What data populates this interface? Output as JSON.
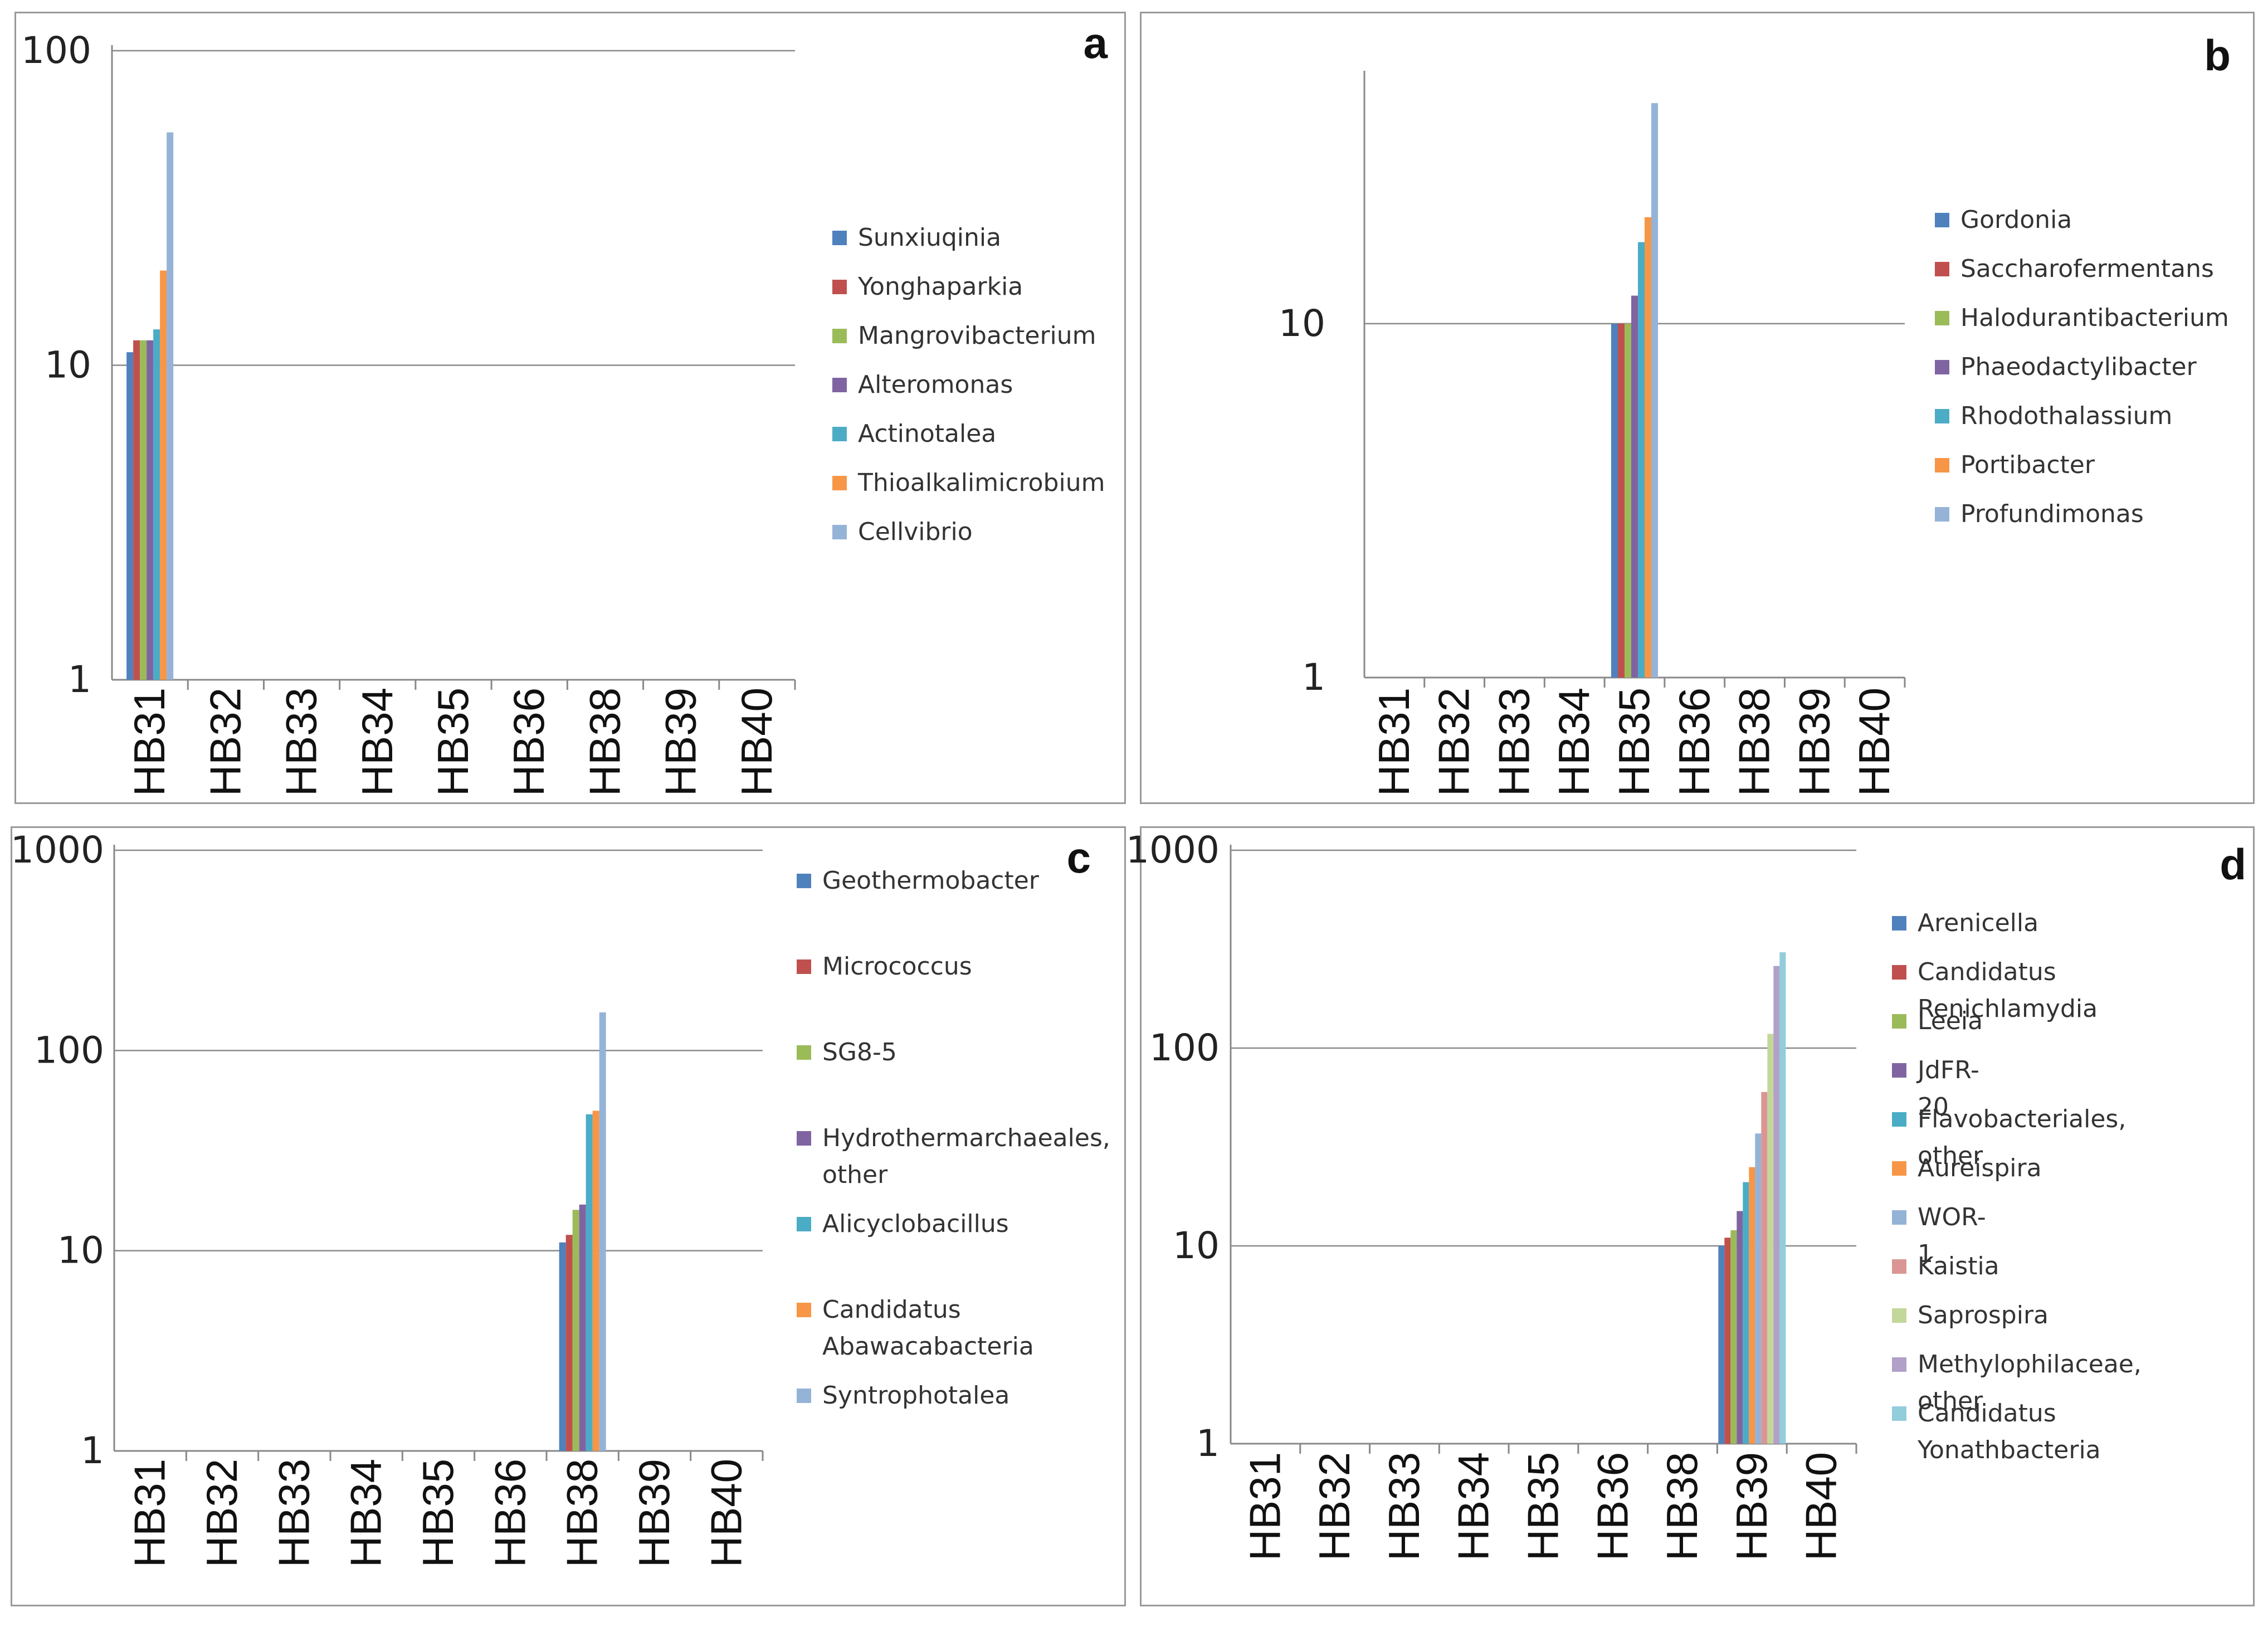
{
  "chart_data": [
    {
      "panel": "a",
      "type": "bar",
      "scale": "log",
      "ylim": [
        1,
        100
      ],
      "y_ticks": [
        "1",
        "10",
        "100"
      ],
      "categories": [
        "HB31",
        "HB32",
        "HB33",
        "HB34",
        "HB35",
        "HB36",
        "HB38",
        "HB39",
        "HB40"
      ],
      "series": [
        {
          "name": "Sunxiuqinia",
          "color": "#4f81bd",
          "values": [
            11,
            1,
            1,
            1,
            1,
            1,
            1,
            1,
            1
          ]
        },
        {
          "name": "Yonghaparkia",
          "color": "#c0504d",
          "values": [
            12,
            1,
            1,
            1,
            1,
            1,
            1,
            1,
            1
          ]
        },
        {
          "name": "Mangrovibacterium",
          "color": "#9bbb59",
          "values": [
            12,
            1,
            1,
            1,
            1,
            1,
            1,
            1,
            1
          ]
        },
        {
          "name": "Alteromonas",
          "color": "#8064a2",
          "values": [
            12,
            1,
            1,
            1,
            1,
            1,
            1,
            1,
            1
          ]
        },
        {
          "name": "Actinotalea",
          "color": "#4bacc6",
          "values": [
            13,
            1,
            1,
            1,
            1,
            1,
            1,
            1,
            1
          ]
        },
        {
          "name": "Thioalkalimicrobium",
          "color": "#f79646",
          "values": [
            20,
            1,
            1,
            1,
            1,
            1,
            1,
            1,
            1
          ]
        },
        {
          "name": "Cellvibrio",
          "color": "#95b3d7",
          "values": [
            55,
            1,
            1,
            1,
            1,
            1,
            1,
            1,
            1
          ]
        }
      ]
    },
    {
      "panel": "b",
      "type": "bar",
      "scale": "log",
      "ylim": [
        1,
        50
      ],
      "y_ticks": [
        "1",
        "10"
      ],
      "categories": [
        "HB31",
        "HB32",
        "HB33",
        "HB34",
        "HB35",
        "HB36",
        "HB38",
        "HB39",
        "HB40"
      ],
      "series": [
        {
          "name": "Gordonia",
          "color": "#4f81bd",
          "values": [
            1,
            1,
            1,
            1,
            10,
            1,
            1,
            1,
            1
          ]
        },
        {
          "name": "Saccharofermentans",
          "color": "#c0504d",
          "values": [
            1,
            1,
            1,
            1,
            10,
            1,
            1,
            1,
            1
          ]
        },
        {
          "name": "Halodurantibacterium",
          "color": "#9bbb59",
          "values": [
            1,
            1,
            1,
            1,
            10,
            1,
            1,
            1,
            1
          ]
        },
        {
          "name": "Phaeodactylibacter",
          "color": "#8064a2",
          "values": [
            1,
            1,
            1,
            1,
            12,
            1,
            1,
            1,
            1
          ]
        },
        {
          "name": "Rhodothalassium",
          "color": "#4bacc6",
          "values": [
            1,
            1,
            1,
            1,
            17,
            1,
            1,
            1,
            1
          ]
        },
        {
          "name": "Portibacter",
          "color": "#f79646",
          "values": [
            1,
            1,
            1,
            1,
            20,
            1,
            1,
            1,
            1
          ]
        },
        {
          "name": "Profundimonas",
          "color": "#95b3d7",
          "values": [
            1,
            1,
            1,
            1,
            42,
            1,
            1,
            1,
            1
          ]
        }
      ]
    },
    {
      "panel": "c",
      "type": "bar",
      "scale": "log",
      "ylim": [
        1,
        1000
      ],
      "y_ticks": [
        "1",
        "10",
        "100",
        "1000"
      ],
      "categories": [
        "HB31",
        "HB32",
        "HB33",
        "HB34",
        "HB35",
        "HB36",
        "HB38",
        "HB39",
        "HB40"
      ],
      "series": [
        {
          "name": "Geothermobacter",
          "color": "#4f81bd",
          "values": [
            1,
            1,
            1,
            1,
            1,
            1,
            11,
            1,
            1
          ]
        },
        {
          "name": "Micrococcus",
          "color": "#c0504d",
          "values": [
            1,
            1,
            1,
            1,
            1,
            1,
            12,
            1,
            1
          ]
        },
        {
          "name": "SG8-5",
          "color": "#9bbb59",
          "values": [
            1,
            1,
            1,
            1,
            1,
            1,
            16,
            1,
            1
          ]
        },
        {
          "name": "Hydrothermarchaeales, other",
          "color": "#8064a2",
          "values": [
            1,
            1,
            1,
            1,
            1,
            1,
            17,
            1,
            1
          ]
        },
        {
          "name": "Alicyclobacillus",
          "color": "#4bacc6",
          "values": [
            1,
            1,
            1,
            1,
            1,
            1,
            48,
            1,
            1
          ]
        },
        {
          "name": "Candidatus Abawacabacteria",
          "color": "#f79646",
          "values": [
            1,
            1,
            1,
            1,
            1,
            1,
            50,
            1,
            1
          ]
        },
        {
          "name": "Syntrophotalea",
          "color": "#95b3d7",
          "values": [
            1,
            1,
            1,
            1,
            1,
            1,
            155,
            1,
            1
          ]
        }
      ]
    },
    {
      "panel": "d",
      "type": "bar",
      "scale": "log",
      "ylim": [
        1,
        1000
      ],
      "y_ticks": [
        "1",
        "10",
        "100",
        "1000"
      ],
      "categories": [
        "HB31",
        "HB32",
        "HB33",
        "HB34",
        "HB35",
        "HB36",
        "HB38",
        "HB39",
        "HB40"
      ],
      "series": [
        {
          "name": "Arenicella",
          "color": "#4f81bd",
          "values": [
            1,
            1,
            1,
            1,
            1,
            1,
            1,
            10,
            1
          ]
        },
        {
          "name": "Candidatus Renichlamydia",
          "color": "#c0504d",
          "values": [
            1,
            1,
            1,
            1,
            1,
            1,
            1,
            11,
            1
          ]
        },
        {
          "name": "Leeia",
          "color": "#9bbb59",
          "values": [
            1,
            1,
            1,
            1,
            1,
            1,
            1,
            12,
            1
          ]
        },
        {
          "name": "JdFR-20",
          "color": "#8064a2",
          "values": [
            1,
            1,
            1,
            1,
            1,
            1,
            1,
            15,
            1
          ]
        },
        {
          "name": "Flavobacteriales, other",
          "color": "#4bacc6",
          "values": [
            1,
            1,
            1,
            1,
            1,
            1,
            1,
            21,
            1
          ]
        },
        {
          "name": "Aureispira",
          "color": "#f79646",
          "values": [
            1,
            1,
            1,
            1,
            1,
            1,
            1,
            25,
            1
          ]
        },
        {
          "name": "WOR-1",
          "color": "#95b3d7",
          "values": [
            1,
            1,
            1,
            1,
            1,
            1,
            1,
            37,
            1
          ]
        },
        {
          "name": "Kaistia",
          "color": "#da9694",
          "values": [
            1,
            1,
            1,
            1,
            1,
            1,
            1,
            60,
            1
          ]
        },
        {
          "name": "Saprospira",
          "color": "#c4d79b",
          "values": [
            1,
            1,
            1,
            1,
            1,
            1,
            1,
            118,
            1
          ]
        },
        {
          "name": "Methylophilaceae, other",
          "color": "#b1a0c7",
          "values": [
            1,
            1,
            1,
            1,
            1,
            1,
            1,
            260,
            1
          ]
        },
        {
          "name": "Candidatus Yonathbacteria",
          "color": "#92cddc",
          "values": [
            1,
            1,
            1,
            1,
            1,
            1,
            1,
            305,
            1
          ]
        }
      ]
    }
  ]
}
